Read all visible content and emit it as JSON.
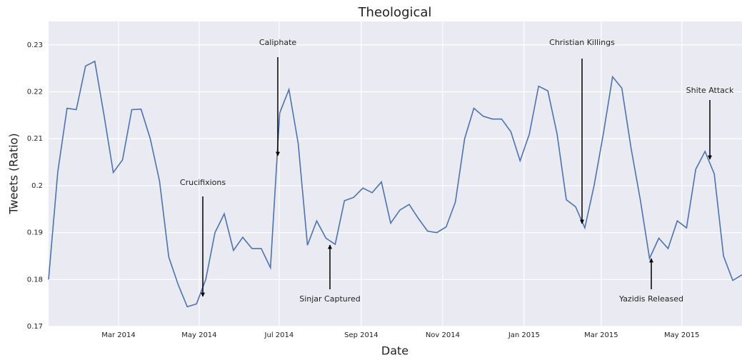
{
  "chart_data": {
    "type": "line",
    "title": "Theological",
    "x_label": "Date",
    "y_label": "Tweets (Ratio)",
    "series": [
      {
        "name": "Tweets (Ratio)",
        "color": "#4c72b0",
        "values": [
          0.18,
          0.203,
          0.2165,
          0.2162,
          0.2255,
          0.2265,
          0.215,
          0.2028,
          0.2055,
          0.2162,
          0.2163,
          0.21,
          0.201,
          0.1848,
          0.179,
          0.1742,
          0.1748,
          0.18,
          0.19,
          0.194,
          0.1862,
          0.189,
          0.1866,
          0.1866,
          0.1825,
          0.2155,
          0.2205,
          0.209,
          0.1873,
          0.1925,
          0.1888,
          0.1875,
          0.1968,
          0.1975,
          0.1995,
          0.1985,
          0.2008,
          0.192,
          0.1948,
          0.196,
          0.193,
          0.1903,
          0.19,
          0.1912,
          0.1965,
          0.21,
          0.2165,
          0.2148,
          0.2142,
          0.2142,
          0.2115,
          0.2053,
          0.211,
          0.2212,
          0.2202,
          0.211,
          0.197,
          0.1955,
          0.191,
          0.2,
          0.211,
          0.2232,
          0.2208,
          0.208,
          0.197,
          0.1845,
          0.1888,
          0.1866,
          0.1925,
          0.191,
          0.2035,
          0.2073,
          0.2025,
          0.185,
          0.1798,
          0.181
        ]
      }
    ],
    "xlim": [
      0,
      75
    ],
    "xticks": [
      {
        "value": 7.57,
        "label": "Mar 2014"
      },
      {
        "value": 16.29,
        "label": "May 2014"
      },
      {
        "value": 24.94,
        "label": "Jul 2014"
      },
      {
        "value": 33.82,
        "label": "Sep 2014"
      },
      {
        "value": 42.63,
        "label": "Nov 2014"
      },
      {
        "value": 51.43,
        "label": "Jan 2015"
      },
      {
        "value": 59.77,
        "label": "Mar 2015"
      },
      {
        "value": 68.49,
        "label": "May 2015"
      }
    ],
    "ylim": [
      0.17,
      0.235
    ],
    "yticks": [
      0.17,
      0.18,
      0.19,
      0.2,
      0.21,
      0.22,
      0.23
    ],
    "grid": true,
    "annotations": [
      "Crucifixions",
      "Caliphate",
      "Sinjar Captured",
      "Christian Killings",
      "Yazidis Released",
      "Shite Attack"
    ]
  }
}
